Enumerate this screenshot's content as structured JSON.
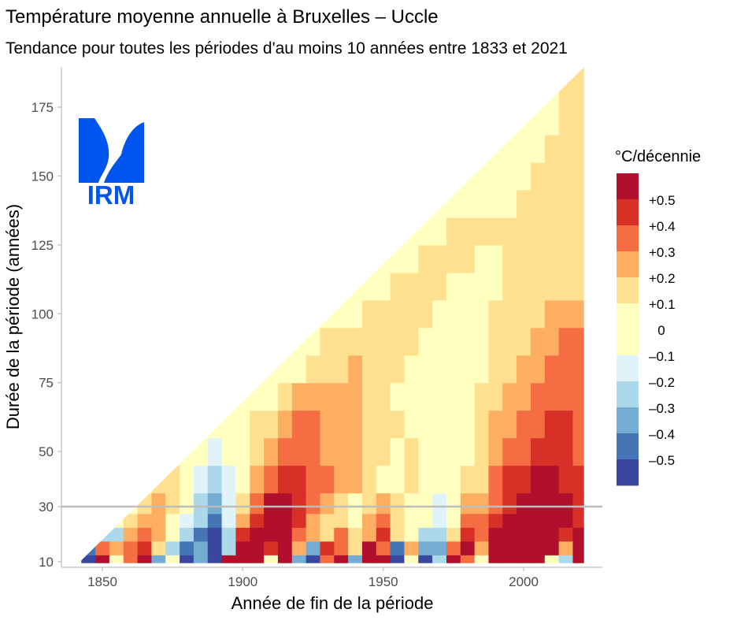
{
  "chart_data": {
    "type": "heatmap",
    "title": "Température moyenne annuelle à Bruxelles – Uccle",
    "subtitle": "Tendance pour toutes les périodes d'au moins 10 années entre 1833 et 2021",
    "xlabel": "Année de fin de la période",
    "ylabel": "Durée de la période (années)",
    "xlim": [
      1842,
      2021
    ],
    "ylim": [
      10,
      189
    ],
    "x_ticks": [
      1850,
      1900,
      1950,
      2000
    ],
    "y_ticks": [
      10,
      30,
      50,
      75,
      100,
      125,
      150,
      175
    ],
    "reference_line_duration": 30,
    "grid": false,
    "legend": {
      "title": "°C/décennie",
      "placement": "right",
      "labels": [
        "+0.5",
        "+0.4",
        "+0.3",
        "+0.2",
        "+0.1",
        "0",
        "–0.1",
        "–0.2",
        "–0.3",
        "–0.4",
        "–0.5"
      ],
      "colors": [
        "#b10f2e",
        "#d73027",
        "#f46d43",
        "#fdae61",
        "#fee090",
        "#ffffbf",
        "#e0f3f8",
        "#abd9e9",
        "#74add1",
        "#4575b4",
        "#3a479f"
      ]
    },
    "end_years": [
      1845,
      1850,
      1855,
      1860,
      1865,
      1870,
      1875,
      1880,
      1885,
      1890,
      1895,
      1900,
      1905,
      1910,
      1915,
      1920,
      1925,
      1930,
      1935,
      1940,
      1945,
      1950,
      1955,
      1960,
      1965,
      1970,
      1975,
      1980,
      1985,
      1990,
      1995,
      2000,
      2005,
      2010,
      2015,
      2020
    ],
    "durations": [
      10,
      15,
      20,
      25,
      30,
      40,
      50,
      60,
      70,
      80,
      90,
      100,
      110,
      120,
      130,
      140,
      150,
      160,
      170,
      180
    ],
    "trend_values": [
      [
        -0.5,
        0.5,
        0,
        0.3,
        0.5,
        -0.3,
        0,
        -0.5,
        -0.3,
        -0.6,
        0.6,
        0.6,
        0.5,
        0,
        0.6,
        -0.3,
        -0.5,
        0.3,
        0.5,
        -0.3,
        0.6,
        0.6,
        -0.6,
        0,
        -0.5,
        -0.2,
        0.5,
        0.3,
        0,
        0.6,
        0.6,
        0.6,
        0.6,
        0,
        -0.2,
        0.6
      ],
      [
        -0.4,
        0.3,
        0.2,
        0.3,
        0.4,
        0.1,
        -0.2,
        -0.4,
        -0.3,
        -0.6,
        -0.2,
        0.6,
        0.6,
        0.4,
        0.6,
        0.2,
        -0.3,
        0.4,
        0.3,
        0.1,
        0.5,
        0.3,
        -0.4,
        0.2,
        -0.3,
        -0.3,
        0.3,
        0.5,
        0.2,
        0.6,
        0.6,
        0.6,
        0.6,
        0.5,
        0.2,
        0.5
      ],
      [
        null,
        -0.2,
        -0.2,
        0.2,
        0.3,
        0.2,
        0,
        -0.2,
        -0.4,
        -0.5,
        -0.2,
        0.4,
        0.6,
        0.5,
        0.6,
        0.3,
        0.2,
        0.1,
        0.3,
        0.1,
        0.2,
        0.4,
        0.1,
        0,
        -0.2,
        -0.2,
        0.1,
        0.4,
        0.3,
        0.5,
        0.6,
        0.6,
        0.6,
        0.5,
        0.4,
        0.5
      ],
      [
        null,
        null,
        0,
        0.1,
        0.2,
        0.2,
        0,
        -0.1,
        -0.2,
        -0.4,
        -0.1,
        0.2,
        0.4,
        0.5,
        0.6,
        0.4,
        0.2,
        0.1,
        0.1,
        0,
        0.2,
        0.3,
        0.1,
        0,
        0,
        -0.1,
        0,
        0.3,
        0.3,
        0.4,
        0.5,
        0.6,
        0.6,
        0.5,
        0.5,
        0.4
      ],
      [
        null,
        null,
        null,
        0,
        0.1,
        0.2,
        0.1,
        0,
        -0.2,
        -0.3,
        -0.1,
        0.1,
        0.3,
        0.5,
        0.5,
        0.4,
        0.3,
        0.2,
        0.1,
        0,
        0.1,
        0.2,
        0.1,
        0,
        0,
        -0.1,
        0,
        0.2,
        0.2,
        0.3,
        0.4,
        0.5,
        0.6,
        0.5,
        0.5,
        0.4
      ],
      [
        null,
        null,
        null,
        null,
        0,
        0.1,
        0.1,
        0,
        -0.1,
        -0.2,
        -0.1,
        0,
        0.2,
        0.3,
        0.4,
        0.4,
        0.3,
        0.3,
        0.2,
        0.2,
        0.1,
        0,
        0,
        0.1,
        0,
        0,
        0,
        0.1,
        0.1,
        0.3,
        0.4,
        0.4,
        0.5,
        0.5,
        0.4,
        0.4
      ],
      [
        null,
        null,
        null,
        null,
        null,
        null,
        0,
        0,
        0,
        -0.1,
        0,
        0,
        0.1,
        0.2,
        0.3,
        0.3,
        0.3,
        0.2,
        0.2,
        0.2,
        0.1,
        0.1,
        0,
        0.1,
        0,
        0,
        0,
        0,
        0.1,
        0.2,
        0.3,
        0.3,
        0.4,
        0.4,
        0.4,
        0.3
      ],
      [
        null,
        null,
        null,
        null,
        null,
        null,
        null,
        null,
        0,
        0,
        0,
        0,
        0.1,
        0.1,
        0.2,
        0.3,
        0.3,
        0.2,
        0.2,
        0.2,
        0.1,
        0.1,
        0.1,
        0,
        0,
        0,
        0,
        0,
        0.1,
        0.2,
        0.2,
        0.3,
        0.3,
        0.4,
        0.4,
        0.3
      ],
      [
        null,
        null,
        null,
        null,
        null,
        null,
        null,
        null,
        null,
        null,
        0,
        0,
        0,
        0,
        0.1,
        0.2,
        0.2,
        0.2,
        0.2,
        0.2,
        0.1,
        0.1,
        0,
        0,
        0,
        0,
        0,
        0,
        0.1,
        0.1,
        0.2,
        0.2,
        0.3,
        0.3,
        0.3,
        0.3
      ],
      [
        null,
        null,
        null,
        null,
        null,
        null,
        null,
        null,
        null,
        null,
        null,
        null,
        0,
        0,
        0,
        0,
        0.1,
        0.1,
        0.1,
        0.2,
        0.1,
        0.1,
        0.1,
        0,
        0,
        0,
        0,
        0,
        0,
        0.1,
        0.1,
        0.2,
        0.2,
        0.3,
        0.3,
        0.3
      ],
      [
        null,
        null,
        null,
        null,
        null,
        null,
        null,
        null,
        null,
        null,
        null,
        null,
        null,
        null,
        0,
        0,
        0,
        0.1,
        0.1,
        0.1,
        0.1,
        0.1,
        0.1,
        0.1,
        0,
        0,
        0,
        0,
        0,
        0.1,
        0.1,
        0.1,
        0.2,
        0.2,
        0.3,
        0.3
      ],
      [
        null,
        null,
        null,
        null,
        null,
        null,
        null,
        null,
        null,
        null,
        null,
        null,
        null,
        null,
        null,
        null,
        0,
        0,
        0,
        0,
        0.1,
        0.1,
        0.1,
        0.1,
        0.1,
        0,
        0,
        0,
        0,
        0.1,
        0.1,
        0.1,
        0.1,
        0.2,
        0.2,
        0.2
      ],
      [
        null,
        null,
        null,
        null,
        null,
        null,
        null,
        null,
        null,
        null,
        null,
        null,
        null,
        null,
        null,
        null,
        null,
        null,
        0,
        0,
        0,
        0,
        0.1,
        0.1,
        0.1,
        0.1,
        0,
        0,
        0,
        0,
        0.1,
        0.1,
        0.1,
        0.1,
        0.1,
        0.1
      ],
      [
        null,
        null,
        null,
        null,
        null,
        null,
        null,
        null,
        null,
        null,
        null,
        null,
        null,
        null,
        null,
        null,
        null,
        null,
        null,
        null,
        0,
        0,
        0,
        0,
        0.1,
        0.1,
        0.1,
        0.1,
        0,
        0,
        0.1,
        0.1,
        0.1,
        0.1,
        0.1,
        0.1
      ],
      [
        null,
        null,
        null,
        null,
        null,
        null,
        null,
        null,
        null,
        null,
        null,
        null,
        null,
        null,
        null,
        null,
        null,
        null,
        null,
        null,
        null,
        null,
        0,
        0,
        0,
        0,
        0.1,
        0.1,
        0.1,
        0.1,
        0.1,
        0.1,
        0.1,
        0.1,
        0.1,
        0.1
      ],
      [
        null,
        null,
        null,
        null,
        null,
        null,
        null,
        null,
        null,
        null,
        null,
        null,
        null,
        null,
        null,
        null,
        null,
        null,
        null,
        null,
        null,
        null,
        null,
        null,
        0,
        0,
        0,
        0,
        0,
        0,
        0,
        0.1,
        0.1,
        0.1,
        0.1,
        0.1
      ],
      [
        null,
        null,
        null,
        null,
        null,
        null,
        null,
        null,
        null,
        null,
        null,
        null,
        null,
        null,
        null,
        null,
        null,
        null,
        null,
        null,
        null,
        null,
        null,
        null,
        null,
        null,
        0,
        0,
        0,
        0,
        0,
        0,
        0.1,
        0.1,
        0.1,
        0.1
      ],
      [
        null,
        null,
        null,
        null,
        null,
        null,
        null,
        null,
        null,
        null,
        null,
        null,
        null,
        null,
        null,
        null,
        null,
        null,
        null,
        null,
        null,
        null,
        null,
        null,
        null,
        null,
        null,
        null,
        0,
        0,
        0,
        0,
        0,
        0.1,
        0.1,
        0.1
      ],
      [
        null,
        null,
        null,
        null,
        null,
        null,
        null,
        null,
        null,
        null,
        null,
        null,
        null,
        null,
        null,
        null,
        null,
        null,
        null,
        null,
        null,
        null,
        null,
        null,
        null,
        null,
        null,
        null,
        null,
        null,
        0,
        0,
        0,
        0,
        0.1,
        0.1
      ],
      [
        null,
        null,
        null,
        null,
        null,
        null,
        null,
        null,
        null,
        null,
        null,
        null,
        null,
        null,
        null,
        null,
        null,
        null,
        null,
        null,
        null,
        null,
        null,
        null,
        null,
        null,
        null,
        null,
        null,
        null,
        null,
        null,
        0,
        0,
        0.1,
        0.1
      ]
    ]
  },
  "logo": {
    "text": "IRM",
    "color": "#0055ee"
  }
}
